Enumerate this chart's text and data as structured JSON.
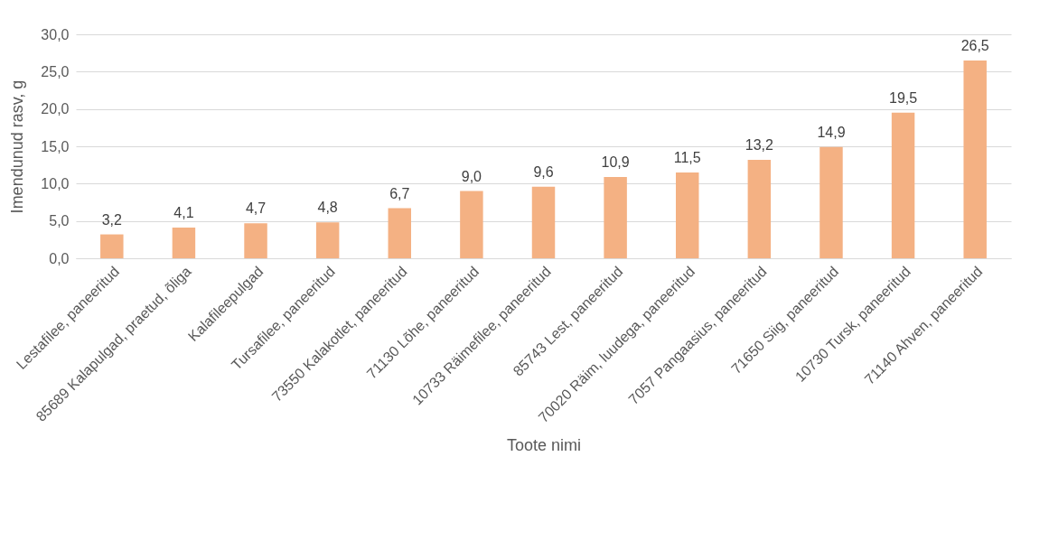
{
  "chart_data": {
    "type": "bar",
    "xlabel": "Toote nimi",
    "ylabel": "Imendunud rasv, g",
    "categories": [
      "Lestafilee, paneeritud",
      "85689 Kalapulgad, praetud, õliga",
      "Kalafileepulgad",
      "Tursafilee, paneeritud",
      "73550 Kalakotlet, paneeritud",
      "71130 Lõhe, paneeritud",
      "10733 Räimefilee, paneeritud",
      "85743 Lest, paneeritud",
      "70020 Räim, luudega, paneeritud",
      "7057 Pangaasius, paneeritud",
      "71650 Siig, paneeritud",
      "10730 Tursk, paneeritud",
      "71140 Ahven, paneeritud"
    ],
    "values": [
      3.2,
      4.1,
      4.7,
      4.8,
      6.7,
      9.0,
      9.6,
      10.9,
      11.5,
      13.2,
      14.9,
      19.5,
      26.5
    ],
    "value_labels": [
      "3,2",
      "4,1",
      "4,7",
      "4,8",
      "6,7",
      "9,0",
      "9,6",
      "10,9",
      "11,5",
      "13,2",
      "14,9",
      "19,5",
      "26,5"
    ],
    "color": "#f4b183",
    "ylim": [
      0,
      30
    ],
    "yticks": [
      {
        "value": 0,
        "label": "0,0"
      },
      {
        "value": 5,
        "label": "5,0"
      },
      {
        "value": 10,
        "label": "10,0"
      },
      {
        "value": 15,
        "label": "15,0"
      },
      {
        "value": 20,
        "label": "20,0"
      },
      {
        "value": 25,
        "label": "25,0"
      },
      {
        "value": 30,
        "label": "30,0"
      }
    ],
    "grid": "y"
  }
}
